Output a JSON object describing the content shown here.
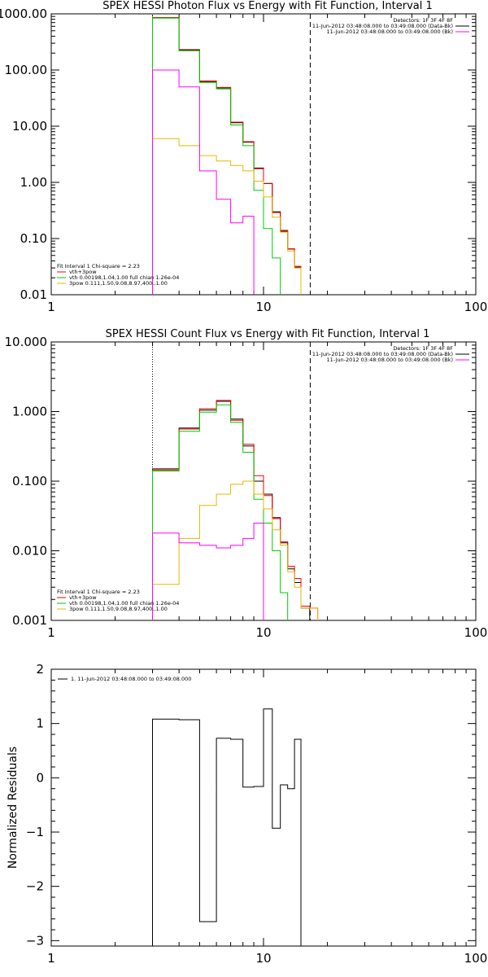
{
  "chart_data": [
    {
      "type": "line",
      "title": "SPEX HESSI Photon Flux vs Energy with Fit Function, Interval 1",
      "xscale": "log",
      "yscale": "log",
      "xlim": [
        1,
        100
      ],
      "ylim": [
        0.01,
        1000
      ],
      "xticks": [
        "1",
        "10",
        "100"
      ],
      "yticks": [
        "0.01",
        "0.10",
        "1.00",
        "10.00",
        "100.00",
        "1000.00"
      ],
      "edges": [
        3,
        4,
        5,
        6,
        7,
        8,
        9,
        10,
        11,
        12,
        13,
        14,
        15,
        16.5,
        18
      ],
      "vlines": [
        {
          "x": 3,
          "style": "dotted",
          "color": "#ff9900"
        },
        {
          "x": 16.6,
          "style": "dashed",
          "color": "#000000"
        }
      ],
      "legend_top": [
        "Detectors: 1F 3F 4F 8F",
        "11-Jun-2012 03:48:08.000 to 03:49:08.000 (Data-Bk)",
        "11-Jun-2012 03:48:08.000 to 03:49:08.000 (Bk)"
      ],
      "legend_top_colors": [
        "",
        "#000000",
        "#ff00ff"
      ],
      "legend_bottom": [
        "Fit Interval 1   Chi-square = 2.23",
        "vth+3pow",
        "vth 0.00198,1.04,1.00  full chian 1.26e-04",
        "3pow 0.111,1.50,9.08,8.97,400.,1.00"
      ],
      "legend_bottom_colors": [
        "",
        "#ff0000",
        "#00cc00",
        "#e6b800"
      ],
      "series": [
        {
          "name": "Data-Bk",
          "color": "#000000",
          "values": [
            850,
            230,
            62,
            48,
            11.5,
            5.2,
            1.8,
            0.95,
            0.3,
            0.135,
            0.065,
            0.031,
            0.0085,
            null
          ]
        },
        {
          "name": "vth+3pow",
          "color": "#ff0000",
          "values": [
            860,
            225,
            64,
            49,
            11.8,
            5.3,
            1.75,
            0.96,
            0.29,
            0.14,
            0.066,
            0.032,
            0.009,
            0.005
          ]
        },
        {
          "name": "vth",
          "color": "#00cc00",
          "values": [
            840,
            220,
            60,
            46,
            10.5,
            4.5,
            0.72,
            0.15,
            0.045,
            0.008,
            0.003,
            null,
            null,
            null
          ]
        },
        {
          "name": "3pow",
          "color": "#e6b800",
          "values": [
            6.0,
            4.5,
            3.0,
            2.4,
            2.0,
            1.6,
            1.05,
            0.55,
            0.24,
            0.13,
            0.06,
            0.03,
            0.009,
            0.005
          ]
        },
        {
          "name": "Bk",
          "color": "#ff00ff",
          "values": [
            100,
            50,
            1.6,
            0.5,
            0.19,
            0.25,
            null,
            null,
            null,
            null,
            null,
            null,
            null,
            null
          ]
        }
      ]
    },
    {
      "type": "line",
      "title": "SPEX HESSI Count Flux vs Energy with Fit Function, Interval 1",
      "xscale": "log",
      "yscale": "log",
      "xlim": [
        1,
        100
      ],
      "ylim": [
        0.001,
        10
      ],
      "xticks": [
        "1",
        "10",
        "100"
      ],
      "yticks": [
        "0.001",
        "0.010",
        "0.100",
        "1.000",
        "10.000"
      ],
      "edges": [
        3,
        4,
        5,
        6,
        7,
        8,
        9,
        10,
        11,
        12,
        13,
        14,
        15,
        16.5,
        18
      ],
      "vlines": [
        {
          "x": 3,
          "style": "dotted",
          "color": "#000000"
        },
        {
          "x": 16.6,
          "style": "dashed",
          "color": "#000000"
        }
      ],
      "legend_top": [
        "Detectors: 1F 3F 4F 8F",
        "11-Jun-2012 03:48:08.000 to 03:49:08.000 (Data-Bk)",
        "11-Jun-2012 03:48:08.000 to 03:49:08.000 (Bk)"
      ],
      "legend_top_colors": [
        "",
        "#000000",
        "#ff00ff"
      ],
      "legend_bottom": [
        "Fit Interval 1   Chi-square = 2.23",
        "vth+3pow",
        "vth 0.00198,1.04,1.00  full chian 1.26e-04",
        "3pow 0.111,1.50,9.08,8.97,400.,1.00"
      ],
      "legend_bottom_colors": [
        "",
        "#ff0000",
        "#00cc00",
        "#e6b800"
      ],
      "series": [
        {
          "name": "Data-Bk",
          "color": "#000000",
          "values": [
            0.15,
            0.58,
            1.05,
            1.4,
            0.78,
            0.32,
            0.1,
            0.065,
            0.03,
            0.013,
            0.0055,
            0.0035,
            0.0015,
            null
          ]
        },
        {
          "name": "vth+3pow",
          "color": "#ff0000",
          "values": [
            0.145,
            0.56,
            1.1,
            1.45,
            0.75,
            0.34,
            0.12,
            0.062,
            0.029,
            0.0135,
            0.006,
            0.004,
            0.0016,
            0.0015
          ]
        },
        {
          "name": "vth",
          "color": "#00cc00",
          "values": [
            0.14,
            0.52,
            0.98,
            1.25,
            0.7,
            0.26,
            0.055,
            0.025,
            0.01,
            0.0025,
            0.0009,
            null,
            null,
            null
          ]
        },
        {
          "name": "3pow",
          "color": "#e6b800",
          "values": [
            0.0033,
            0.015,
            0.045,
            0.065,
            0.09,
            0.1,
            0.065,
            0.04,
            0.02,
            0.012,
            0.005,
            0.003,
            0.0015,
            0.0015
          ]
        },
        {
          "name": "Bk",
          "color": "#ff00ff",
          "values": [
            0.018,
            0.013,
            0.012,
            0.011,
            0.012,
            0.015,
            0.025,
            null,
            null,
            null,
            null,
            null,
            null,
            null
          ]
        }
      ]
    },
    {
      "type": "line",
      "title": "",
      "xscale": "log",
      "yscale": "linear",
      "xlim": [
        1,
        100
      ],
      "ylim": [
        -3.1,
        2
      ],
      "xticks": [
        "1",
        "10",
        "100"
      ],
      "yticks": [
        "2",
        "1",
        "0",
        "-1",
        "-2",
        "-3"
      ],
      "ylabel": "Normalized Residuals",
      "edges": [
        3,
        4,
        5,
        6,
        7,
        8,
        9,
        10,
        11,
        12,
        13,
        14,
        15,
        16.5
      ],
      "legend": "1. 11-Jun-2012 03:48:08.000 to 03:49:08.000",
      "series": [
        {
          "name": "",
          "color": "#000000",
          "values": [
            1.08,
            1.07,
            -2.65,
            0.73,
            0.71,
            -0.17,
            -0.16,
            1.27,
            -0.93,
            -0.13,
            -0.2,
            0.71,
            null
          ]
        }
      ]
    }
  ]
}
